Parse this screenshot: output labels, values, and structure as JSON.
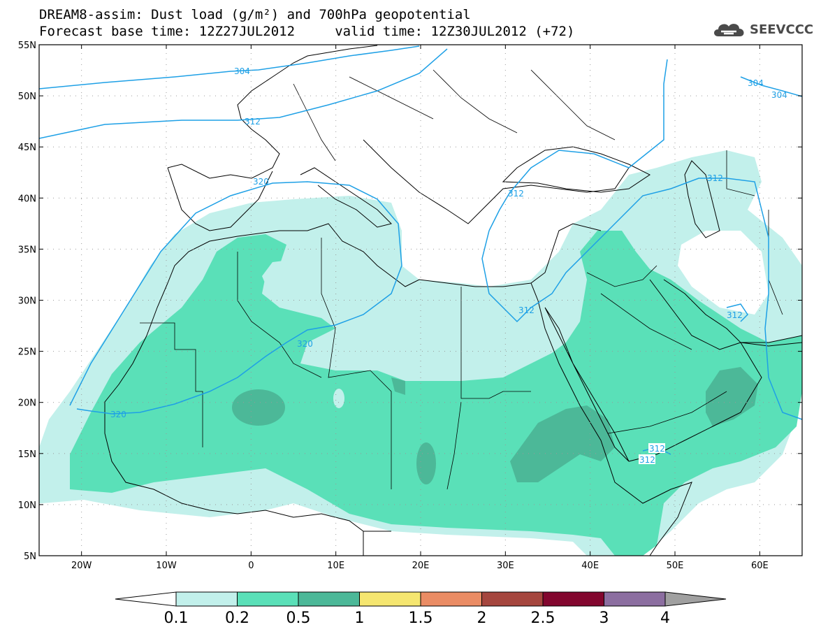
{
  "header": {
    "title_line1": "DREAM8-assim: Dust load (g/m²) and 700hPa geopotential",
    "title_line2": "Forecast base time: 12Z27JUL2012     valid time: 12Z30JUL2012 (+72)",
    "logo_text": "SEEVCCC"
  },
  "map": {
    "lon_labels": [
      "20W",
      "10W",
      "0",
      "10E",
      "20E",
      "30E",
      "40E",
      "50E",
      "60E"
    ],
    "lat_labels": [
      "55N",
      "50N",
      "45N",
      "40N",
      "35N",
      "30N",
      "25N",
      "20N",
      "15N",
      "10N",
      "5N"
    ],
    "contour_labels": [
      "304",
      "304",
      "304",
      "312",
      "312",
      "312",
      "312",
      "312",
      "312",
      "312",
      "320",
      "320",
      "320"
    ],
    "contour_color": "#1ea0e6",
    "coastline_color": "#000000"
  },
  "colorbar": {
    "labels": [
      "0.1",
      "0.2",
      "0.5",
      "1",
      "1.5",
      "2",
      "2.5",
      "3",
      "4"
    ],
    "colors": [
      "#ffffff",
      "#c2f0eb",
      "#5ae0b8",
      "#4cb898",
      "#f5e670",
      "#ea8c64",
      "#a5463e",
      "#82062e",
      "#8c6ea0",
      "#a0a0a0"
    ]
  },
  "chart_data": {
    "type": "heatmap",
    "title": "DREAM8-assim: Dust load (g/m²) and 700hPa geopotential",
    "lon_range": [
      -25,
      65
    ],
    "lat_range": [
      5,
      55
    ],
    "legend_levels": [
      0.1,
      0.2,
      0.5,
      1,
      1.5,
      2,
      2.5,
      3,
      4
    ],
    "contour_levels": [
      304,
      312,
      320
    ]
  }
}
